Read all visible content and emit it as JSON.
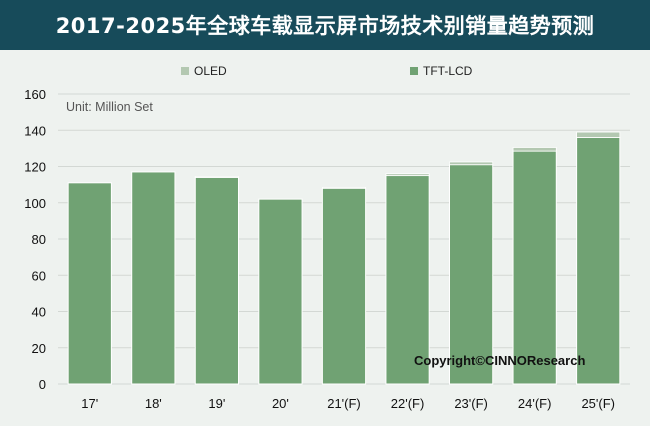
{
  "title": "2017-2025年全球车载显示屏市场技术别销量趋势预测",
  "unit": "Unit: Million Set",
  "copyright": "Copyright©CINNOResearch",
  "colors": {
    "title_bg": "#174b5a",
    "plot_bg": "#eef2ef",
    "grid": "#d3d8d4",
    "tft": "#70a273",
    "oled": "#b3c8b1",
    "bar_outline": "#ffffff"
  },
  "chart_data": {
    "type": "bar",
    "stacked": true,
    "categories": [
      "17'",
      "18'",
      "19'",
      "20'",
      "21'(F)",
      "22'(F)",
      "23'(F)",
      "24'(F)",
      "25'(F)"
    ],
    "series": [
      {
        "name": "TFT-LCD",
        "values": [
          111,
          117,
          114,
          102,
          108,
          115,
          121,
          128.5,
          136
        ]
      },
      {
        "name": "OLED",
        "values": [
          0,
          0,
          0.5,
          0,
          0.5,
          1,
          1.5,
          2,
          3
        ]
      }
    ],
    "ylim": [
      0,
      160
    ],
    "yticks": [
      0,
      20,
      40,
      60,
      80,
      100,
      120,
      140,
      160
    ],
    "grid": true,
    "legend_position": "top"
  }
}
